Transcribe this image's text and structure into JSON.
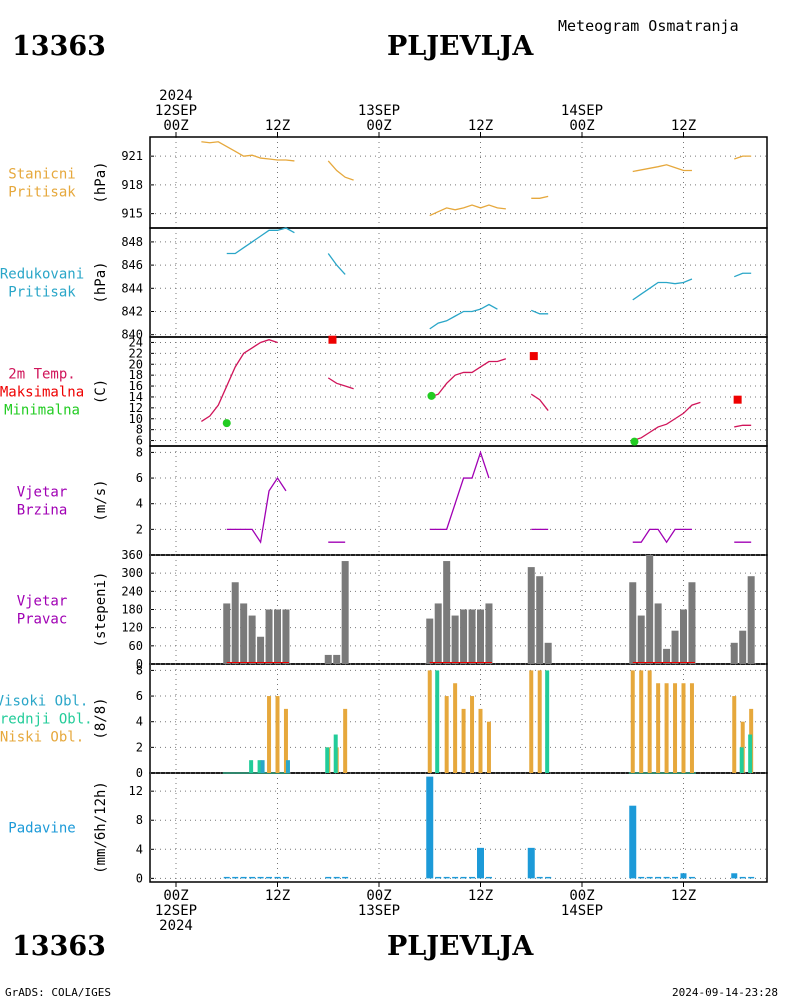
{
  "header": {
    "station_id": "13363",
    "station_name": "PLJEVLJA",
    "product": "Meteogram Osmatranja"
  },
  "footer": {
    "credit": "GrADS: COLA/IGES",
    "timestamp": "2024-09-14-23:28"
  },
  "time_axis": {
    "top_labels": [
      {
        "t": 0,
        "lines": [
          "2024",
          "12SEP",
          "00Z"
        ]
      },
      {
        "t": 12,
        "lines": [
          "12Z"
        ]
      },
      {
        "t": 24,
        "lines": [
          "13SEP",
          "00Z"
        ]
      },
      {
        "t": 36,
        "lines": [
          "12Z"
        ]
      },
      {
        "t": 48,
        "lines": [
          "14SEP",
          "00Z"
        ]
      },
      {
        "t": 60,
        "lines": [
          "12Z"
        ]
      }
    ],
    "bottom_labels": [
      {
        "t": 0,
        "lines": [
          "00Z",
          "12SEP",
          "2024"
        ]
      },
      {
        "t": 12,
        "lines": [
          "12Z"
        ]
      },
      {
        "t": 24,
        "lines": [
          "00Z",
          "13SEP"
        ]
      },
      {
        "t": 36,
        "lines": [
          "12Z"
        ]
      },
      {
        "t": 48,
        "lines": [
          "00Z",
          "14SEP"
        ]
      },
      {
        "t": 60,
        "lines": [
          "12Z"
        ]
      }
    ]
  },
  "colors": {
    "pressure": "#e6a83c",
    "reduced_pressure": "#2aa6c8",
    "temperature": "#d0155a",
    "max_temp": "#ee0000",
    "min_temp": "#22cc22",
    "wind": "#a000b4",
    "wind_dir_bar": "#7a7a7a",
    "cloud_high": "#2aa6c8",
    "cloud_mid": "#22cc99",
    "cloud_low": "#e6a83c",
    "precip": "#1c9ad8"
  },
  "panels": [
    {
      "key": "p1",
      "side_label": [
        {
          "text": "Stanicni",
          "color": "#e6a83c"
        },
        {
          "text": "Pritisak",
          "color": "#e6a83c"
        }
      ],
      "unit": "(hPa)",
      "ticks": [
        "921",
        "918",
        "915"
      ]
    },
    {
      "key": "p2",
      "side_label": [
        {
          "text": "Redukovani",
          "color": "#2aa6c8"
        },
        {
          "text": "Pritisak",
          "color": "#2aa6c8"
        }
      ],
      "unit": "(hPa)",
      "ticks": [
        "848",
        "846",
        "844",
        "842",
        "840"
      ]
    },
    {
      "key": "p3",
      "side_label": [
        {
          "text": "2m Temp.",
          "color": "#d0155a"
        },
        {
          "text": "Maksimalna",
          "color": "#ee0000"
        },
        {
          "text": "Minimalna",
          "color": "#22cc22"
        }
      ],
      "unit": "(C)",
      "ticks": [
        "24",
        "22",
        "20",
        "18",
        "16",
        "14",
        "12",
        "10",
        "8",
        "6"
      ]
    },
    {
      "key": "p4",
      "side_label": [
        {
          "text": "Vjetar",
          "color": "#a000b4"
        },
        {
          "text": "Brzina",
          "color": "#a000b4"
        }
      ],
      "unit": "(m/s)",
      "ticks": [
        "8",
        "6",
        "4",
        "2"
      ]
    },
    {
      "key": "p5",
      "side_label": [
        {
          "text": "Vjetar",
          "color": "#a000b4"
        },
        {
          "text": "Pravac",
          "color": "#a000b4"
        }
      ],
      "unit": "(stepeni)",
      "ticks": [
        "360",
        "300",
        "240",
        "180",
        "120",
        "60",
        "0"
      ]
    },
    {
      "key": "p6",
      "side_label": [
        {
          "text": "Visoki Obl.",
          "color": "#2aa6c8"
        },
        {
          "text": "Srednji Obl.",
          "color": "#22cc99"
        },
        {
          "text": "Niski Obl.",
          "color": "#e6a83c"
        }
      ],
      "unit": "(8/8)",
      "ticks": [
        "8",
        "6",
        "4",
        "2",
        "0"
      ]
    },
    {
      "key": "p7",
      "side_label": [
        {
          "text": "Padavine",
          "color": "#1c9ad8"
        }
      ],
      "unit": "(mm/6h/12h)",
      "ticks": [
        "12",
        "8",
        "4",
        "0"
      ]
    }
  ],
  "chart_data": {
    "type": "line",
    "x_unit": "hours since 2024-09-12 00Z",
    "xlim": [
      -3,
      70
    ],
    "station_pressure": {
      "ylim": [
        913.5,
        923
      ],
      "segments": [
        [
          [
            3,
            922.5
          ],
          [
            4,
            922.4
          ],
          [
            5,
            922.5
          ],
          [
            6,
            922.0
          ],
          [
            7,
            921.5
          ],
          [
            8,
            921.0
          ],
          [
            9,
            921.1
          ],
          [
            10,
            920.8
          ],
          [
            11,
            920.7
          ],
          [
            12,
            920.6
          ],
          [
            13,
            920.6
          ],
          [
            14,
            920.5
          ]
        ],
        [
          [
            18,
            920.5
          ],
          [
            19,
            919.5
          ],
          [
            20,
            918.8
          ],
          [
            21,
            918.5
          ]
        ],
        [
          [
            30,
            914.8
          ],
          [
            31,
            915.2
          ],
          [
            32,
            915.6
          ],
          [
            33,
            915.4
          ],
          [
            34,
            915.6
          ],
          [
            35,
            915.9
          ],
          [
            36,
            915.6
          ],
          [
            37,
            915.9
          ],
          [
            38,
            915.6
          ],
          [
            39,
            915.5
          ]
        ],
        [
          [
            42,
            916.6
          ],
          [
            43,
            916.6
          ],
          [
            44,
            916.8
          ]
        ],
        [
          [
            54,
            919.4
          ],
          [
            57,
            919.9
          ],
          [
            58,
            920.1
          ],
          [
            59,
            919.8
          ],
          [
            60,
            919.5
          ],
          [
            61,
            919.5
          ]
        ],
        [
          [
            66,
            920.7
          ],
          [
            67,
            921.0
          ],
          [
            68,
            921.0
          ]
        ]
      ]
    },
    "reduced_pressure": {
      "ylim": [
        839.8,
        849.2
      ],
      "segments": [
        [
          [
            6,
            847.0
          ],
          [
            7,
            847.0
          ],
          [
            8,
            847.5
          ],
          [
            9,
            848.0
          ],
          [
            10,
            848.5
          ],
          [
            11,
            849.0
          ],
          [
            12,
            849.0
          ],
          [
            13,
            849.2
          ],
          [
            14,
            848.8
          ]
        ],
        [
          [
            18,
            847.0
          ],
          [
            19,
            846.0
          ],
          [
            20,
            845.2
          ]
        ],
        [
          [
            30,
            840.5
          ],
          [
            31,
            841.0
          ],
          [
            32,
            841.2
          ],
          [
            33,
            841.6
          ],
          [
            34,
            842.0
          ],
          [
            35,
            842.0
          ],
          [
            36,
            842.2
          ],
          [
            37,
            842.6
          ],
          [
            38,
            842.2
          ]
        ],
        [
          [
            42,
            842.1
          ],
          [
            43,
            841.8
          ],
          [
            44,
            841.8
          ]
        ],
        [
          [
            54,
            843.0
          ],
          [
            55,
            843.5
          ],
          [
            56,
            844.0
          ],
          [
            57,
            844.5
          ],
          [
            58,
            844.5
          ],
          [
            59,
            844.4
          ],
          [
            60,
            844.5
          ],
          [
            61,
            844.8
          ]
        ],
        [
          [
            66,
            845.0
          ],
          [
            67,
            845.3
          ],
          [
            68,
            845.3
          ]
        ]
      ]
    },
    "temperature_2m": {
      "ylim": [
        5,
        25
      ],
      "segments": [
        [
          [
            3,
            9.5
          ],
          [
            4,
            10.5
          ],
          [
            5,
            12.5
          ],
          [
            6,
            16.0
          ],
          [
            7,
            19.5
          ],
          [
            8,
            22.0
          ],
          [
            9,
            23.0
          ],
          [
            10,
            24.0
          ],
          [
            11,
            24.5
          ],
          [
            12,
            24.0
          ]
        ],
        [
          [
            18,
            17.5
          ],
          [
            19,
            16.5
          ],
          [
            20,
            16.0
          ],
          [
            21,
            15.5
          ]
        ],
        [
          [
            30,
            14.0
          ],
          [
            31,
            14.5
          ],
          [
            32,
            16.5
          ],
          [
            33,
            18.0
          ],
          [
            34,
            18.5
          ],
          [
            35,
            18.5
          ],
          [
            36,
            19.5
          ],
          [
            37,
            20.5
          ],
          [
            38,
            20.5
          ],
          [
            39,
            21.0
          ]
        ],
        [
          [
            42,
            14.5
          ],
          [
            43,
            13.5
          ],
          [
            44,
            11.5
          ]
        ],
        [
          [
            54,
            6.0
          ],
          [
            55,
            6.5
          ],
          [
            56,
            7.5
          ],
          [
            57,
            8.5
          ],
          [
            58,
            9.0
          ],
          [
            59,
            10.0
          ],
          [
            60,
            11.0
          ],
          [
            61,
            12.5
          ],
          [
            62,
            13.0
          ]
        ],
        [
          [
            66,
            8.5
          ],
          [
            67,
            8.8
          ],
          [
            68,
            8.8
          ]
        ]
      ],
      "maxima": [
        [
          18.5,
          24.5
        ],
        [
          42.3,
          21.5
        ],
        [
          66.4,
          13.5
        ]
      ],
      "minima": [
        [
          6,
          9.2
        ],
        [
          30.2,
          14.2
        ],
        [
          54.2,
          5.8
        ]
      ]
    },
    "wind_speed": {
      "ylim": [
        0,
        8.5
      ],
      "segments": [
        [
          [
            6,
            2
          ],
          [
            7,
            2
          ],
          [
            8,
            2
          ],
          [
            9,
            2
          ],
          [
            10,
            1
          ],
          [
            11,
            5
          ],
          [
            12,
            6
          ],
          [
            13,
            5
          ]
        ],
        [
          [
            18,
            1
          ],
          [
            19,
            1
          ],
          [
            20,
            1
          ]
        ],
        [
          [
            30,
            2
          ],
          [
            31,
            2
          ],
          [
            32,
            2
          ],
          [
            33,
            4
          ],
          [
            34,
            6
          ],
          [
            35,
            6
          ],
          [
            36,
            8
          ],
          [
            37,
            6
          ]
        ],
        [
          [
            42,
            2
          ],
          [
            43,
            2
          ],
          [
            44,
            2
          ]
        ],
        [
          [
            54,
            1
          ],
          [
            55,
            1
          ],
          [
            56,
            2
          ],
          [
            57,
            2
          ],
          [
            58,
            1
          ],
          [
            59,
            2
          ],
          [
            60,
            2
          ],
          [
            61,
            2
          ]
        ],
        [
          [
            66,
            1
          ],
          [
            67,
            1
          ],
          [
            68,
            1
          ]
        ]
      ]
    },
    "wind_direction": {
      "ylim": [
        0,
        360
      ],
      "bars": [
        [
          6,
          200
        ],
        [
          7,
          270
        ],
        [
          8,
          200
        ],
        [
          9,
          160
        ],
        [
          10,
          90
        ],
        [
          11,
          180
        ],
        [
          12,
          180
        ],
        [
          13,
          180
        ],
        [
          18,
          30
        ],
        [
          19,
          30
        ],
        [
          20,
          340
        ],
        [
          30,
          150
        ],
        [
          31,
          200
        ],
        [
          32,
          340
        ],
        [
          33,
          160
        ],
        [
          34,
          180
        ],
        [
          35,
          180
        ],
        [
          36,
          180
        ],
        [
          37,
          200
        ],
        [
          42,
          320
        ],
        [
          43,
          290
        ],
        [
          44,
          70
        ],
        [
          54,
          270
        ],
        [
          55,
          160
        ],
        [
          56,
          360
        ],
        [
          57,
          200
        ],
        [
          58,
          50
        ],
        [
          59,
          110
        ],
        [
          60,
          180
        ],
        [
          61,
          270
        ],
        [
          66,
          70
        ],
        [
          67,
          110
        ],
        [
          68,
          290
        ]
      ]
    },
    "clouds": {
      "ylim": [
        0,
        8.5
      ],
      "low": [
        [
          6,
          0
        ],
        [
          7,
          0
        ],
        [
          8,
          0
        ],
        [
          9,
          0
        ],
        [
          10,
          0
        ],
        [
          11,
          6
        ],
        [
          12,
          6
        ],
        [
          13,
          5
        ],
        [
          18,
          2
        ],
        [
          19,
          2
        ],
        [
          20,
          5
        ],
        [
          30,
          8
        ],
        [
          32,
          6
        ],
        [
          33,
          7
        ],
        [
          34,
          5
        ],
        [
          35,
          6
        ],
        [
          36,
          5
        ],
        [
          37,
          4
        ],
        [
          42,
          8
        ],
        [
          43,
          8
        ],
        [
          54,
          8
        ],
        [
          55,
          8
        ],
        [
          56,
          8
        ],
        [
          57,
          7
        ],
        [
          58,
          7
        ],
        [
          59,
          7
        ],
        [
          60,
          7
        ],
        [
          61,
          7
        ],
        [
          66,
          6
        ],
        [
          67,
          4
        ],
        [
          68,
          5
        ]
      ],
      "mid": [
        [
          9,
          1
        ],
        [
          10,
          1
        ],
        [
          18,
          2
        ],
        [
          19,
          3
        ],
        [
          31,
          8
        ],
        [
          44,
          8
        ],
        [
          67,
          2
        ],
        [
          68,
          3
        ]
      ],
      "high": [
        [
          10,
          1
        ],
        [
          13,
          1
        ]
      ]
    },
    "precipitation": {
      "ylim": [
        -0.5,
        14.5
      ],
      "bars": [
        [
          6,
          0.2
        ],
        [
          7,
          0.2
        ],
        [
          8,
          0.2
        ],
        [
          9,
          0.2
        ],
        [
          10,
          0.2
        ],
        [
          11,
          0.2
        ],
        [
          12,
          0.2
        ],
        [
          13,
          0.2
        ],
        [
          18,
          0.2
        ],
        [
          19,
          0.2
        ],
        [
          20,
          0.2
        ],
        [
          30,
          14
        ],
        [
          31,
          0.2
        ],
        [
          32,
          0.2
        ],
        [
          33,
          0.2
        ],
        [
          34,
          0.2
        ],
        [
          35,
          0.2
        ],
        [
          36,
          4.2
        ],
        [
          37,
          0.2
        ],
        [
          42,
          4.2
        ],
        [
          43,
          0.2
        ],
        [
          44,
          0.2
        ],
        [
          54,
          10
        ],
        [
          55,
          0.2
        ],
        [
          56,
          0.2
        ],
        [
          57,
          0.2
        ],
        [
          58,
          0.2
        ],
        [
          59,
          0.2
        ],
        [
          60,
          0.7
        ],
        [
          61,
          0.2
        ],
        [
          66,
          0.7
        ],
        [
          67,
          0.2
        ],
        [
          68,
          0.2
        ]
      ]
    }
  }
}
